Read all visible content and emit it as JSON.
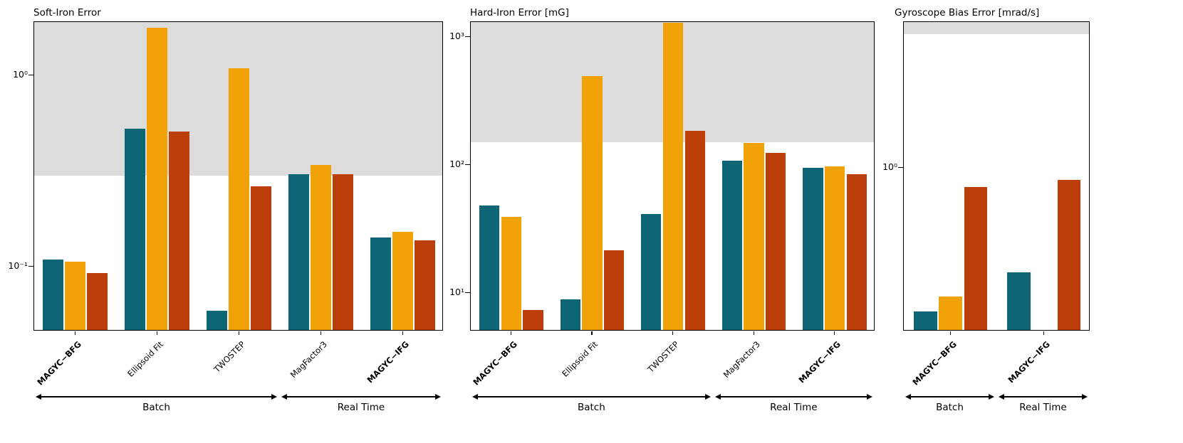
{
  "figure": {
    "background": "#ffffff",
    "series_colors": [
      "#0e6575",
      "#f1a208",
      "#bc3f09"
    ],
    "shade_color": "#dcdcdc"
  },
  "chart_data": [
    {
      "type": "bar",
      "title": "Soft-Iron Error",
      "yscale": "log",
      "ylim": [
        0.046,
        1.9
      ],
      "shade_above": 0.3,
      "grid": false,
      "legend": "none",
      "categories": [
        "MAGYC−BFG",
        "Ellipsoid Fit",
        "TWOSTEP",
        "MagFactor3",
        "MAGYC−IFG"
      ],
      "bold_categories": [
        true,
        false,
        false,
        false,
        true
      ],
      "yticks": [
        {
          "label": "10⁰",
          "value": 1
        },
        {
          "label": "10⁻¹",
          "value": 0.1
        }
      ],
      "series": [
        {
          "name": "series-1",
          "values": [
            0.107,
            0.52,
            0.058,
            0.3,
            0.14
          ]
        },
        {
          "name": "series-2",
          "values": [
            0.105,
            1.75,
            1.07,
            0.335,
            0.15
          ]
        },
        {
          "name": "series-3",
          "values": [
            0.091,
            0.5,
            0.26,
            0.3,
            0.135
          ]
        }
      ],
      "groups": [
        {
          "label": "Batch",
          "span": [
            0,
            3
          ]
        },
        {
          "label": "Real Time",
          "span": [
            3,
            5
          ]
        }
      ]
    },
    {
      "type": "bar",
      "title": "Hard-Iron Error [mG]",
      "yscale": "log",
      "ylim": [
        5,
        1300
      ],
      "shade_above": 150,
      "grid": false,
      "legend": "none",
      "categories": [
        "MAGYC−BFG",
        "Ellipsoid Fit",
        "TWOSTEP",
        "MagFactor3",
        "MAGYC−IFG"
      ],
      "bold_categories": [
        true,
        false,
        false,
        false,
        true
      ],
      "yticks": [
        {
          "label": "10³",
          "value": 1000
        },
        {
          "label": "10²",
          "value": 100
        },
        {
          "label": "10¹",
          "value": 10
        }
      ],
      "series": [
        {
          "name": "series-1",
          "values": [
            47,
            8.7,
            40,
            105,
            92
          ]
        },
        {
          "name": "series-2",
          "values": [
            38,
            480,
            1250,
            145,
            95
          ]
        },
        {
          "name": "series-3",
          "values": [
            7.2,
            21,
            180,
            120,
            82
          ]
        }
      ],
      "groups": [
        {
          "label": "Batch",
          "span": [
            0,
            3
          ]
        },
        {
          "label": "Real Time",
          "span": [
            3,
            5
          ]
        }
      ]
    },
    {
      "type": "bar",
      "title": "Gyroscope Bias Error [mrad/s]",
      "yscale": "log",
      "ylim": [
        0.14,
        5.8
      ],
      "shade_above": 5.0,
      "grid": false,
      "legend": "none",
      "categories": [
        "MAGYC−BFG",
        "MAGYC−IFG"
      ],
      "bold_categories": [
        true,
        true
      ],
      "yticks": [
        {
          "label": "10⁰",
          "value": 1
        }
      ],
      "series": [
        {
          "name": "series-1",
          "values": [
            0.175,
            0.28
          ]
        },
        {
          "name": "series-2",
          "values": [
            0.21,
            null
          ]
        },
        {
          "name": "series-3",
          "values": [
            0.78,
            0.85
          ]
        }
      ],
      "groups": [
        {
          "label": "Batch",
          "span": [
            0,
            1
          ]
        },
        {
          "label": "Real Time",
          "span": [
            1,
            2
          ]
        }
      ]
    }
  ]
}
